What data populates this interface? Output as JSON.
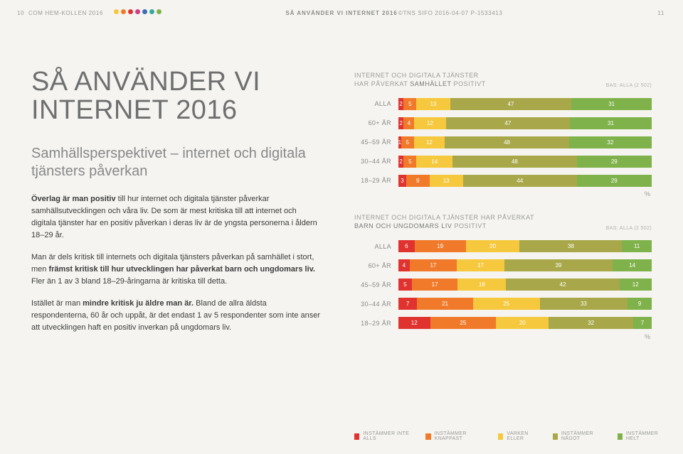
{
  "colors": {
    "red": "#e0332f",
    "orange": "#f07a2a",
    "yellow": "#f5c83d",
    "olive": "#a8a84a",
    "green": "#7fb24a",
    "dots": [
      "#f5c83d",
      "#f07a2a",
      "#e0332f",
      "#d13c8a",
      "#3b6fb5",
      "#3aa6a0",
      "#7fb24a"
    ]
  },
  "header": {
    "pageLeft": "10",
    "hemkollen": "COM HEM-KOLLEN 2016",
    "mid": "SÅ ANVÄNDER VI INTERNET 2016",
    "tns": "©TNS SIFO 2016-04-07   P-1533413",
    "pageRight": "11"
  },
  "left": {
    "h1a": "SÅ ANVÄNDER VI",
    "h1b": "INTERNET 2016",
    "h2": "Samhällsperspektivet – internet och digitala tjänsters påverkan",
    "p1a": "Överlag är man positiv",
    "p1b": " till hur internet och digitala tjänster påverkar samhällsutvecklingen och våra liv. De som är mest kritiska till att internet och digitala tjänster har en positiv påverkan i deras liv är de yngsta personerna i åldern 18–29 år.",
    "p2a": "Man är dels kritisk till internets och digitala tjänsters påverkan på samhället i stort, men ",
    "p2b": "främst kritisk till hur utvecklingen har påverkat barn och ungdomars liv.",
    "p2c": " Fler än 1 av 3 bland 18–29-åringarna är kritiska till detta.",
    "p3a": "Istället är man ",
    "p3b": "mindre kritisk ju äldre man är.",
    "p3c": " Bland de allra äldsta respondenterna, 60 år och uppåt, är det endast 1 av 5 respondenter som inte anser att utvecklingen haft en positiv inverkan på ungdomars liv."
  },
  "charts": [
    {
      "title1": "INTERNET OCH DIGITALA TJÄNSTER",
      "title2": "HAR PÅVERKAT ",
      "title2em": "SAMHÄLLET",
      "title2b": " POSITIVT",
      "bas": "BAS: ALLA (2 502)",
      "rows": [
        {
          "label": "ALLA",
          "v": [
            2,
            5,
            13,
            47,
            31
          ]
        },
        {
          "label": "60+ ÅR",
          "v": [
            2,
            4,
            12,
            47,
            31
          ]
        },
        {
          "label": "45–59 ÅR",
          "v": [
            1,
            5,
            12,
            48,
            32
          ]
        },
        {
          "label": "30–44 ÅR",
          "v": [
            2,
            5,
            14,
            48,
            29
          ]
        },
        {
          "label": "18–29 ÅR",
          "v": [
            3,
            9,
            13,
            44,
            29
          ]
        }
      ],
      "pct": "%"
    },
    {
      "title1": "INTERNET OCH DIGITALA TJÄNSTER HAR PÅVERKAT",
      "title2": "",
      "title2em": "BARN OCH UNGDOMARS LIV",
      "title2b": " POSITIVT",
      "bas": "BAS: ALLA (2 502)",
      "rows": [
        {
          "label": "ALLA",
          "v": [
            6,
            19,
            20,
            38,
            11
          ]
        },
        {
          "label": "60+ ÅR",
          "v": [
            4,
            17,
            17,
            39,
            14
          ]
        },
        {
          "label": "45–59 ÅR",
          "v": [
            5,
            17,
            18,
            42,
            12
          ]
        },
        {
          "label": "30–44 ÅR",
          "v": [
            7,
            21,
            25,
            33,
            9
          ]
        },
        {
          "label": "18–29 ÅR",
          "v": [
            12,
            25,
            20,
            32,
            7
          ]
        }
      ],
      "pct": "%"
    }
  ],
  "legend": [
    "INSTÄMMER INTE ALLS",
    "INSTÄMMER KNAPPAST",
    "VARKEN ELLER",
    "INSTÄMMER NÅGOT",
    "INSTÄMMER HELT"
  ]
}
